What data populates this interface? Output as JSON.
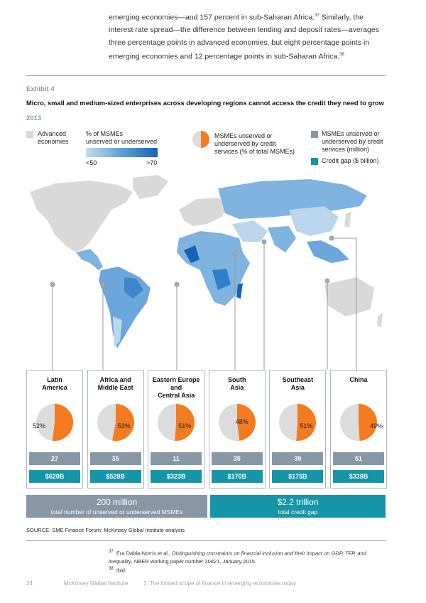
{
  "intro": {
    "p1": "emerging economies—and 157 percent in sub-Saharan Africa.",
    "ref1": "37",
    "p2": " Similarly, the interest rate spread—the difference between lending and deposit rates—averages three percentage points in advanced economies, but eight percentage points in emerging economies and 12 percentage points in sub-Saharan Africa.",
    "ref2": "38"
  },
  "exhibit": {
    "label": "Exhibit 4",
    "title": "Micro, small and medium-sized enterprises across developing regions cannot access the credit they need to grow",
    "year": "2013"
  },
  "legend": {
    "advanced_line1": "Advanced",
    "advanced_line2": "economies",
    "pct_line1": "% of MSMEs",
    "pct_line2": "unserved or underserved",
    "low": "<50",
    "high": ">70",
    "pie_line1": "MSMEs unserved or",
    "pie_line2": "underserved by credit",
    "pie_line3": "services (% of total MSMEs)",
    "count_line1": "MSMEs unserved or",
    "count_line2": "underserved by credit",
    "count_line3": "services (million)",
    "gap": "Credit gap ($ billion)",
    "colors": {
      "advanced": "#d9d9d9",
      "count": "#8797a6",
      "gap": "#1795a8",
      "pie_orange": "#f47b20",
      "pie_grey": "#dcdcdc"
    }
  },
  "regions": [
    {
      "line1": "Latin",
      "line2": "America",
      "line3": "",
      "pct_label": "52%",
      "pct": 52,
      "count": "27",
      "gap": "$620B"
    },
    {
      "line1": "Africa and",
      "line2": "Middle East",
      "line3": "",
      "pct_label": "53%",
      "pct": 53,
      "count": "35",
      "gap": "$528B"
    },
    {
      "line1": "Eastern Europe",
      "line2": "and",
      "line3": "Central Asia",
      "pct_label": "51%",
      "pct": 51,
      "count": "11",
      "gap": "$323B"
    },
    {
      "line1": "South",
      "line2": "Asia",
      "line3": "",
      "pct_label": "48%",
      "pct": 48,
      "count": "35",
      "gap": "$170B"
    },
    {
      "line1": "Southeast",
      "line2": "Asia",
      "line3": "",
      "pct_label": "51%",
      "pct": 51,
      "count": "39",
      "gap": "$175B"
    },
    {
      "line1": "China",
      "line2": "",
      "line3": "",
      "pct_label": "49%",
      "pct": 49,
      "count": "51",
      "gap": "$338B"
    }
  ],
  "totals": {
    "msme_value": "200 million",
    "msme_label": "total number of unserved or underserved MSMEs",
    "gap_value": "$2.2 trillion",
    "gap_label": "total credit gap"
  },
  "source": "SOURCE:  SME Finance Forum; McKinsey Global Institute analysis",
  "footnotes": {
    "n37": "37",
    "t37a": "Era Dabla-Norris et al., ",
    "t37b": "Distinguishing constraints on financial inclusion and their impact on GDP, TFP, and inequality",
    "t37c": ", NBER working paper number 20821, January 2015.",
    "n38": "38",
    "t38": "Ibid."
  },
  "footer": {
    "page": "24",
    "publisher": "McKinsey Global Institute",
    "chapter": "1. The limited scope of finance in emerging economies today"
  }
}
